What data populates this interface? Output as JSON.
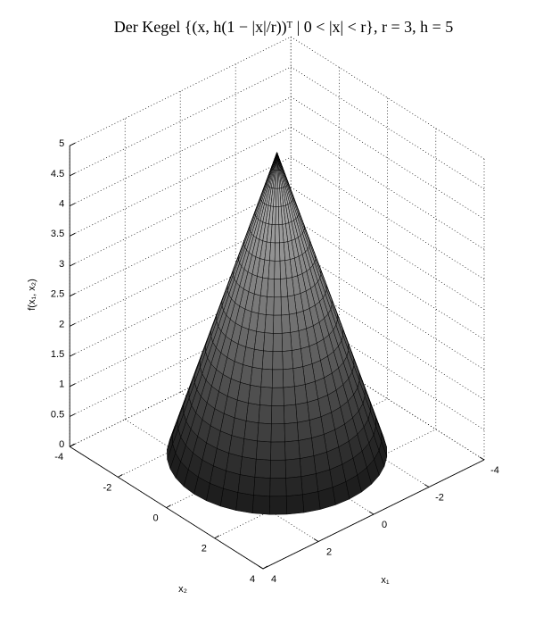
{
  "chart_data": {
    "type": "surface",
    "title": "Der Kegel {(x, h(1 − |x|/r))ᵀ | 0 < |x| < r}, r = 3, h = 5",
    "xlabel": "x₁",
    "ylabel": "x₂",
    "zlabel": "f(x₁, x₂)",
    "surface": {
      "r": 3,
      "h": 5
    },
    "xlim": [
      -4,
      4
    ],
    "xticks": [
      -4,
      -2,
      0,
      2,
      4
    ],
    "ylim": [
      -4,
      4
    ],
    "yticks": [
      -4,
      -2,
      0,
      2,
      4
    ],
    "zlim": [
      0,
      5
    ],
    "zticks": [
      0,
      0.5,
      1,
      1.5,
      2,
      2.5,
      3,
      3.5,
      4,
      4.5,
      5
    ],
    "grid": true
  }
}
